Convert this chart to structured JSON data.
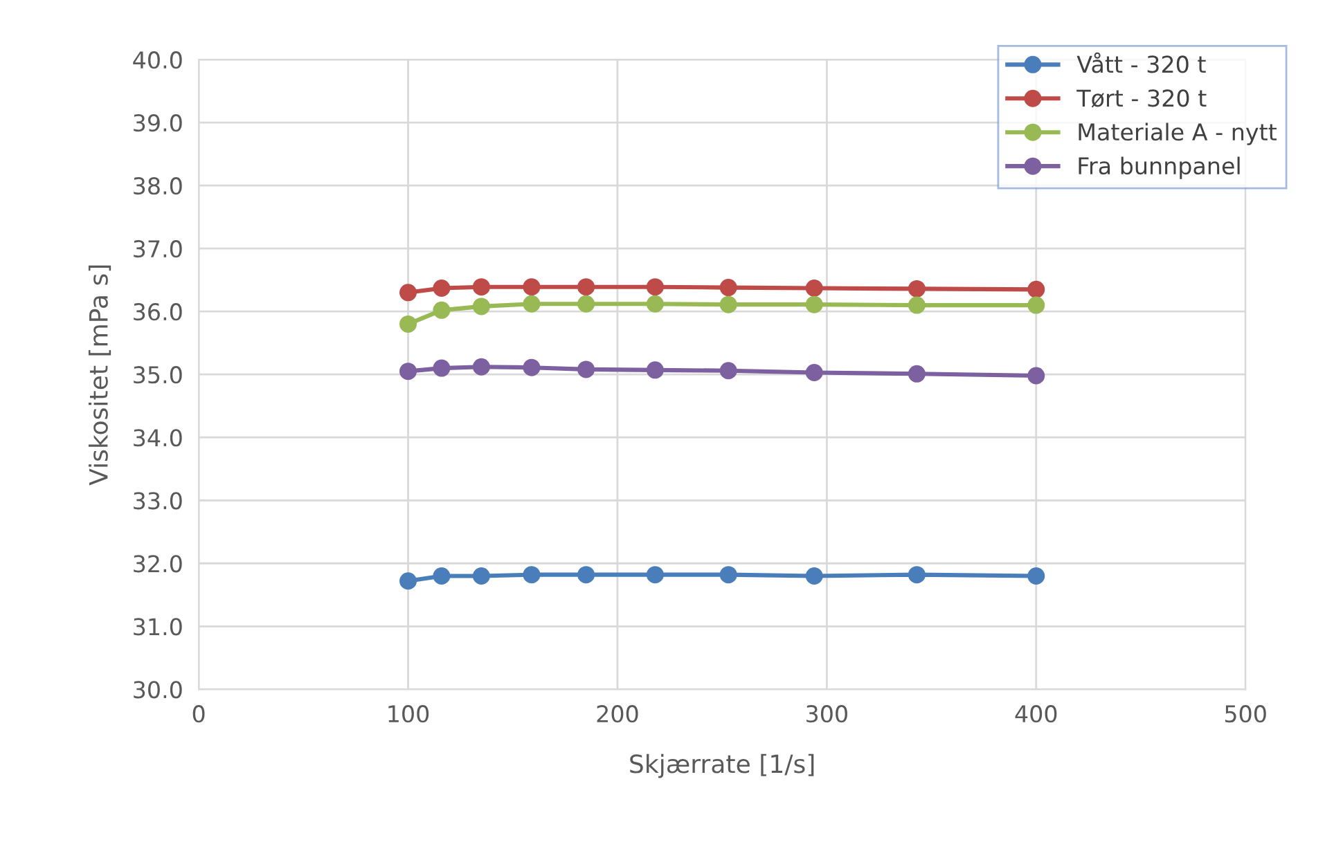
{
  "chart_data": {
    "type": "line",
    "xlabel": "Skjærrate [1/s]",
    "ylabel": "Viskositet [mPa s]",
    "x": [
      100,
      116,
      135,
      159,
      185,
      218,
      253,
      294,
      343,
      400
    ],
    "series": [
      {
        "name": "Vått - 320 t",
        "color": "#4a7ebb",
        "values": [
          31.72,
          31.8,
          31.8,
          31.82,
          31.82,
          31.82,
          31.82,
          31.8,
          31.82,
          31.8
        ]
      },
      {
        "name": "Tørt - 320 t",
        "color": "#be4b48",
        "values": [
          36.3,
          36.37,
          36.39,
          36.39,
          36.39,
          36.39,
          36.38,
          36.37,
          36.36,
          36.35
        ]
      },
      {
        "name": "Materiale A - nytt",
        "color": "#98b954",
        "values": [
          35.8,
          36.02,
          36.08,
          36.12,
          36.12,
          36.12,
          36.11,
          36.11,
          36.1,
          36.1
        ]
      },
      {
        "name": "Fra bunnpanel",
        "color": "#7d60a0",
        "values": [
          35.05,
          35.1,
          35.12,
          35.11,
          35.08,
          35.07,
          35.06,
          35.03,
          35.01,
          34.98
        ]
      }
    ],
    "xlim": [
      0,
      500
    ],
    "xticks": [
      0,
      100,
      200,
      300,
      400,
      500
    ],
    "ylim": [
      30,
      40
    ],
    "yticks": [
      {
        "value": 30,
        "label": "30.0"
      },
      {
        "value": 31,
        "label": "31.0"
      },
      {
        "value": 32,
        "label": "32.0"
      },
      {
        "value": 33,
        "label": "33.0"
      },
      {
        "value": 34,
        "label": "34.0"
      },
      {
        "value": 35,
        "label": "35.0"
      },
      {
        "value": 36,
        "label": "36.0"
      },
      {
        "value": 37,
        "label": "37.0"
      },
      {
        "value": 38,
        "label": "38.0"
      },
      {
        "value": 39,
        "label": "39.0"
      },
      {
        "value": 40,
        "label": "40.0"
      }
    ],
    "grid": true,
    "legend": "top right",
    "marker": "circle",
    "line_style": "solid"
  }
}
